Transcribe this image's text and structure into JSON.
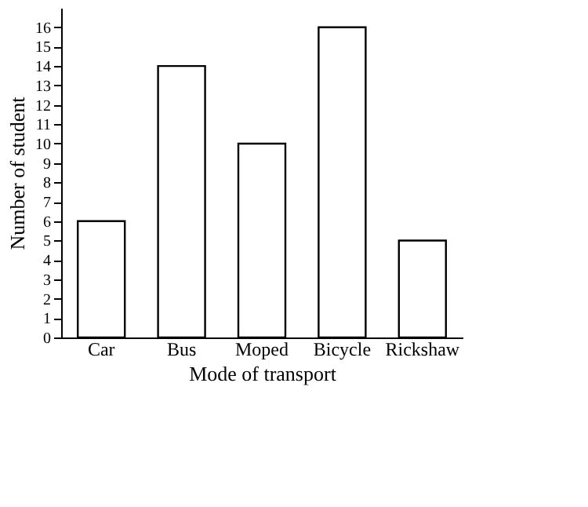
{
  "chart_data": {
    "type": "bar",
    "xlabel": "Mode of transport",
    "ylabel": "Number of student",
    "categories": [
      "Car",
      "Bus",
      "Moped",
      "Bicycle",
      "Rickshaw"
    ],
    "values": [
      6,
      14,
      10,
      16,
      5
    ],
    "color": "#ffffff",
    "ylim": [
      0,
      17
    ],
    "yticks": [
      0,
      1,
      2,
      3,
      4,
      5,
      6,
      7,
      8,
      9,
      10,
      11,
      12,
      13,
      14,
      15,
      16
    ],
    "grid": false
  }
}
